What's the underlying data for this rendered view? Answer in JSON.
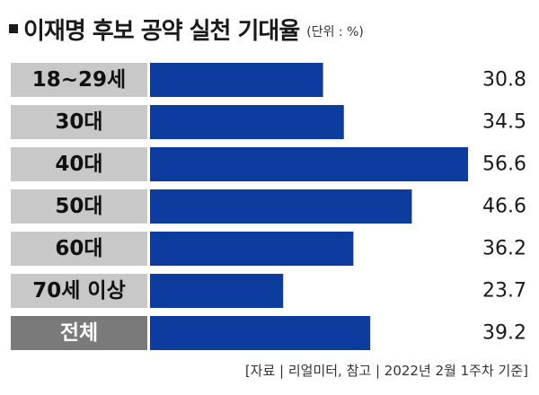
{
  "title": "이재명 후보 공약 실천 기대율",
  "unit": "(단위 : %)",
  "source": "[자료 | 리얼미터, 참고 | 2022년 2월 1주차 기준]",
  "colors": {
    "bar": "#0c3d9e",
    "label_bg": "#c8c8c8",
    "label_bg_total": "#7a7a7a",
    "label_text": "#111111",
    "label_text_total": "#ffffff"
  },
  "chart_data": {
    "type": "bar",
    "orientation": "horizontal",
    "title": "이재명 후보 공약 실천 기대율",
    "unit": "(단위 : %)",
    "categories": [
      "18~29세",
      "30대",
      "40대",
      "50대",
      "60대",
      "70세 이상",
      "전체"
    ],
    "values": [
      30.8,
      34.5,
      56.6,
      46.6,
      36.2,
      23.7,
      39.2
    ],
    "value_labels": [
      "30.8",
      "34.5",
      "56.6",
      "46.6",
      "36.2",
      "23.7",
      "39.2"
    ],
    "highlight_category": "전체",
    "xlim": [
      0,
      56.6
    ],
    "grid": false,
    "legend": "none"
  }
}
